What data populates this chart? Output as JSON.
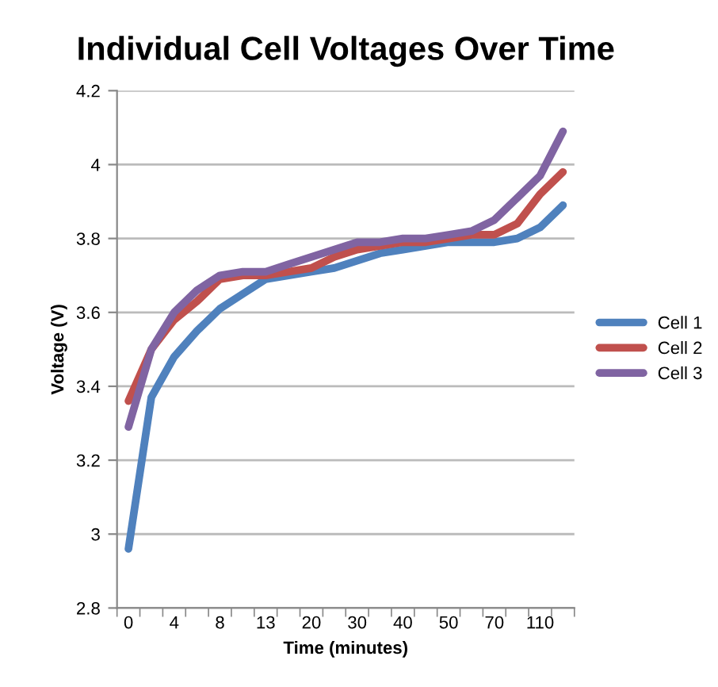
{
  "chart_data": {
    "type": "line",
    "title": "Individual Cell Voltages Over Time",
    "xlabel": "Time (minutes)",
    "ylabel": "Voltage (V)",
    "categories": [
      "0",
      null,
      "4",
      null,
      "8",
      null,
      "13",
      null,
      "20",
      null,
      "30",
      null,
      "40",
      null,
      "50",
      null,
      "70",
      null,
      "110",
      null
    ],
    "series": [
      {
        "name": "Cell 1",
        "color": "#4f81bd",
        "values": [
          2.96,
          3.37,
          3.48,
          3.55,
          3.61,
          3.65,
          3.69,
          3.7,
          3.71,
          3.72,
          3.74,
          3.76,
          3.77,
          3.78,
          3.79,
          3.79,
          3.79,
          3.8,
          3.83,
          3.89
        ]
      },
      {
        "name": "Cell 2",
        "color": "#c0504d",
        "values": [
          3.36,
          3.5,
          3.58,
          3.63,
          3.69,
          3.7,
          3.7,
          3.71,
          3.72,
          3.75,
          3.77,
          3.78,
          3.79,
          3.79,
          3.8,
          3.81,
          3.81,
          3.84,
          3.92,
          3.98
        ]
      },
      {
        "name": "Cell 3",
        "color": "#8064a2",
        "values": [
          3.29,
          3.5,
          3.6,
          3.66,
          3.7,
          3.71,
          3.71,
          3.73,
          3.75,
          3.77,
          3.79,
          3.79,
          3.8,
          3.8,
          3.81,
          3.82,
          3.85,
          3.91,
          3.97,
          4.09
        ]
      }
    ],
    "ylim": [
      2.8,
      4.2
    ],
    "yticks": [
      2.8,
      3,
      3.2,
      3.4,
      3.6,
      3.8,
      4,
      4.2
    ],
    "grid": "y",
    "legend": "right",
    "marker": "none",
    "line_style": "solid"
  }
}
